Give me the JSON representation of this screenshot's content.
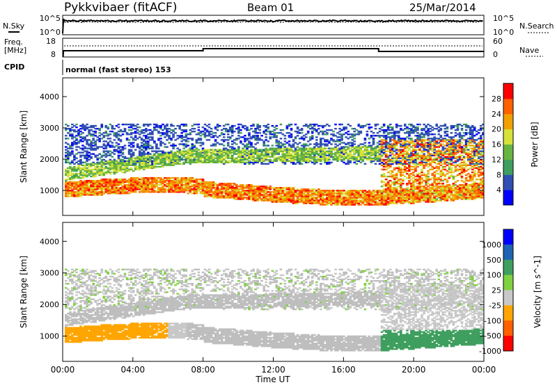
{
  "header": {
    "station": "Pykkvibaer (fitACF)",
    "beam": "Beam 01",
    "date": "25/Mar/2014"
  },
  "panels": {
    "nsky": {
      "label": "N.Sky",
      "right_label": "N.Search",
      "left_ticks": [
        "10^5",
        "10^0"
      ],
      "right_ticks": [
        "10^5",
        "10^0"
      ]
    },
    "freq": {
      "label_top": "Freq.",
      "label_bottom": "[MHz]",
      "left_ticks": [
        "18",
        "8"
      ],
      "right_label": "Nave",
      "right_ticks": [
        "60",
        "0"
      ],
      "cpid_label": "CPID",
      "cpid_text": "normal (fast stereo) 153"
    }
  },
  "colors": {
    "power_scale": [
      "#0000ff",
      "#2f4fb2",
      "#3f9f5f",
      "#68b440",
      "#d6e13a",
      "#f0a000",
      "#ff6000",
      "#ff0000"
    ],
    "velocity_scale": [
      "#0000ff",
      "#1f63b5",
      "#3f9f5f",
      "#7fd13f",
      "#c8c8c8",
      "#ffa500",
      "#ff6000",
      "#ff0000"
    ],
    "ground_scatter": "#bebebe"
  },
  "chart_data": [
    {
      "type": "heatmap",
      "title": "",
      "xlabel": "",
      "ylabel": "Slant Range [km]",
      "x_ticks": [
        "00:00",
        "04:00",
        "08:00",
        "12:00",
        "16:00",
        "20:00",
        "00:00"
      ],
      "y_ticks": [
        1000,
        2000,
        3000,
        4000
      ],
      "ylim": [
        200,
        4600
      ],
      "colorbar": {
        "label": "Power [dB]",
        "ticks": [
          4,
          8,
          12,
          16,
          20,
          24,
          28
        ],
        "range": [
          0,
          32
        ]
      },
      "scatter_regions": [
        {
          "name": "low",
          "range_km": [
            700,
            1400
          ],
          "hours": [
            0,
            24
          ],
          "peak_db": 26
        },
        {
          "name": "mid",
          "range_km": [
            1400,
            2000
          ],
          "hours": [
            0,
            18
          ],
          "peak_db": 18
        },
        {
          "name": "upper",
          "range_km": [
            2000,
            3200
          ],
          "hours": [
            0,
            24
          ],
          "peak_db": 8
        }
      ]
    },
    {
      "type": "heatmap",
      "title": "",
      "xlabel": "Time UT",
      "ylabel": "Slant Range [km]",
      "x_ticks": [
        "00:00",
        "04:00",
        "08:00",
        "12:00",
        "16:00",
        "20:00",
        "00:00"
      ],
      "y_ticks": [
        1000,
        2000,
        3000,
        4000
      ],
      "ylim": [
        200,
        4600
      ],
      "colorbar": {
        "label": "Velocity [m s^-1]",
        "ticks": [
          "1000",
          "500",
          "100",
          "25",
          "-25",
          "-100",
          "-500",
          "-1000"
        ]
      }
    }
  ]
}
